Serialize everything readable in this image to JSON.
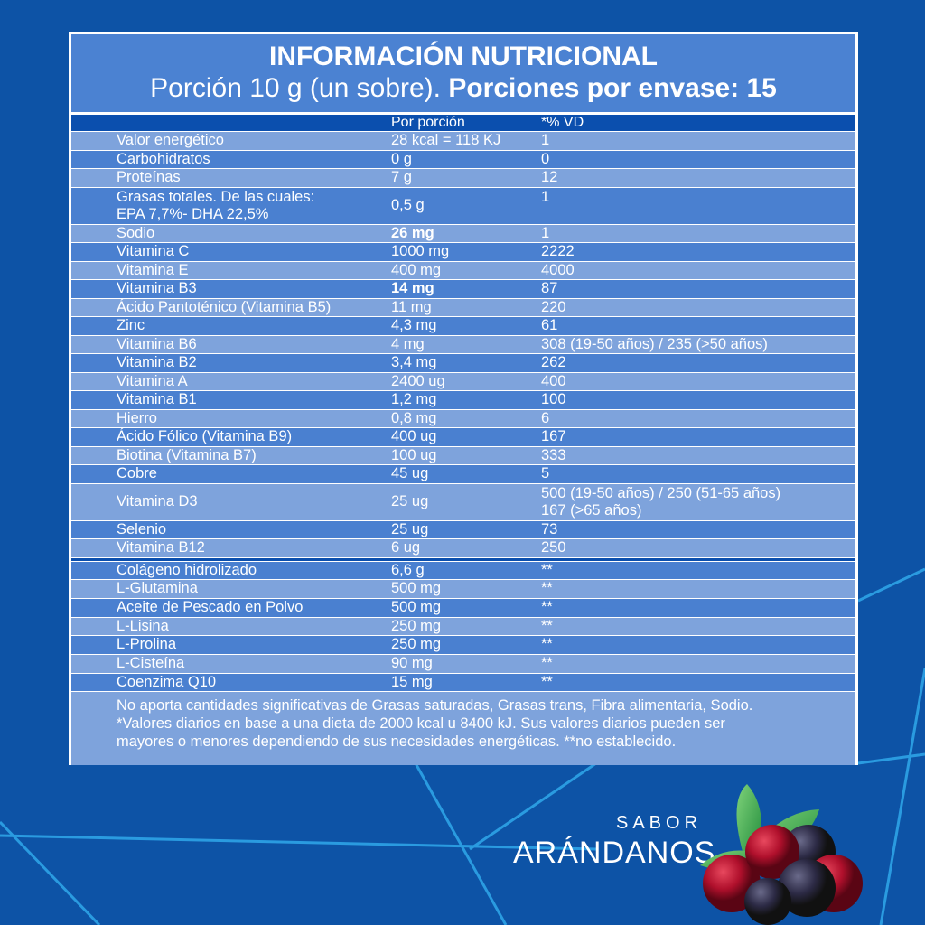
{
  "colors": {
    "background": "#0d53a6",
    "title_band": "#4b82d2",
    "header_band": "#0b4fae",
    "row_light": "#7ea3dc",
    "row_dark": "#4a80d0"
  },
  "title": "INFORMACIÓN NUTRICIONAL",
  "subtitle": {
    "portion": "Porción 10 g (un sobre).",
    "servings": "Porciones por envase: 15"
  },
  "columns": {
    "per_portion": "Por porción",
    "vd": "*% VD"
  },
  "rows": [
    {
      "name": "Valor energético",
      "value": "28 kcal = 118 KJ",
      "vd": "1"
    },
    {
      "name": "Carbohidratos",
      "value": "0 g",
      "vd": "0"
    },
    {
      "name": "Proteínas",
      "value": "7 g",
      "vd": "12"
    },
    {
      "name": "Grasas totales. De las cuales:\nEPA 7,7%- DHA 22,5%",
      "value": "0,5 g",
      "vd": "1"
    },
    {
      "name": "Sodio",
      "value": "26 mg",
      "vd": "1",
      "bold": true
    },
    {
      "name": "Vitamina C",
      "value": "1000 mg",
      "vd": "2222"
    },
    {
      "name": "Vitamina E",
      "value": "400 mg",
      "vd": "4000"
    },
    {
      "name": "Vitamina B3",
      "value": "14 mg",
      "vd": "87",
      "bold": true
    },
    {
      "name": "Ácido Pantoténico (Vitamina B5)",
      "value": "11 mg",
      "vd": "220"
    },
    {
      "name": "Zinc",
      "value": "4,3 mg",
      "vd": "61"
    },
    {
      "name": "Vitamina B6",
      "value": "4 mg",
      "vd": "308 (19-50 años) / 235 (>50 años)"
    },
    {
      "name": "Vitamina B2",
      "value": "3,4 mg",
      "vd": "262"
    },
    {
      "name": "Vitamina A",
      "value": "2400 ug",
      "vd": "400"
    },
    {
      "name": "Vitamina B1",
      "value": "1,2 mg",
      "vd": "100"
    },
    {
      "name": "Hierro",
      "value": "0,8 mg",
      "vd": "6"
    },
    {
      "name": "Ácido Fólico (Vitamina B9)",
      "value": "400 ug",
      "vd": "167"
    },
    {
      "name": "Biotina (Vitamina B7)",
      "value": "100 ug",
      "vd": "333"
    },
    {
      "name": "Cobre",
      "value": "45 ug",
      "vd": "5"
    },
    {
      "name": "Vitamina D3",
      "value": "25 ug",
      "vd": "500 (19-50 años) / 250 (51-65 años)\n167 (>65 años)"
    },
    {
      "name": "Selenio",
      "value": "25 ug",
      "vd": "73"
    },
    {
      "name": "Vitamina B12",
      "value": "6 ug",
      "vd": "250"
    }
  ],
  "rows2": [
    {
      "name": "Colágeno hidrolizado",
      "value": "6,6 g",
      "vd": "**"
    },
    {
      "name": "L-Glutamina",
      "value": "500 mg",
      "vd": "**"
    },
    {
      "name": "Aceite de Pescado en Polvo",
      "value": "500 mg",
      "vd": "**"
    },
    {
      "name": "L-Lisina",
      "value": "250 mg",
      "vd": "**"
    },
    {
      "name": "L-Prolina",
      "value": "250 mg",
      "vd": "**"
    },
    {
      "name": "L-Cisteína",
      "value": "90 mg",
      "vd": "**"
    },
    {
      "name": "Coenzima Q10",
      "value": "15 mg",
      "vd": "**"
    }
  ],
  "footer": [
    "No aporta cantidades significativas de Grasas saturadas, Grasas trans, Fibra alimentaria, Sodio.",
    "*Valores diarios en base a una dieta de 2000 kcal u 8400 kJ. Sus valores diarios pueden ser",
    "mayores o menores dependiendo de sus necesidades energéticas. **no establecido."
  ],
  "flavor": {
    "prefix": "SABOR",
    "name": "ARÁNDANOS",
    "icon": "berries-illustration"
  }
}
